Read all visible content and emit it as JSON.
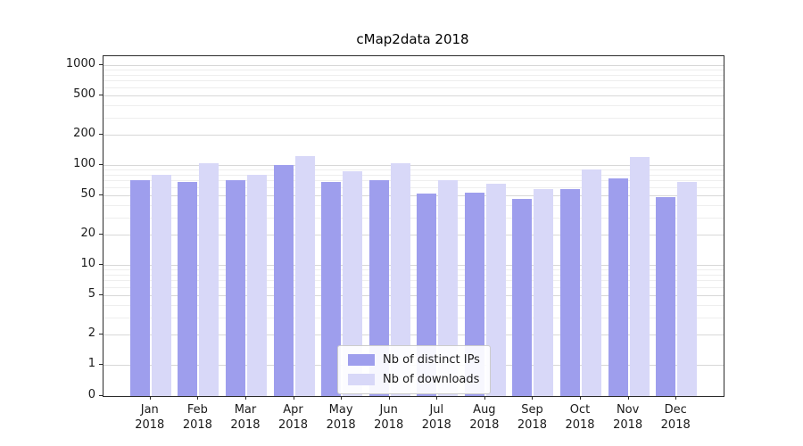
{
  "title": "cMap2data 2018",
  "chart_data": {
    "type": "bar",
    "title": "cMap2data 2018",
    "yscale": "symlog",
    "ylim": [
      0,
      1000
    ],
    "y_ticks": [
      0,
      1,
      2,
      5,
      10,
      20,
      50,
      100,
      200,
      500,
      1000
    ],
    "grid": true,
    "legend_position": "lower center",
    "categories": [
      "Jan",
      "Feb",
      "Mar",
      "Apr",
      "May",
      "Jun",
      "Jul",
      "Aug",
      "Sep",
      "Oct",
      "Nov",
      "Dec"
    ],
    "year": "2018",
    "series": [
      {
        "name": "Nb of distinct IPs",
        "color": "#9e9eed",
        "values": [
          70,
          68,
          70,
          100,
          68,
          71,
          52,
          53,
          46,
          57,
          73,
          48
        ]
      },
      {
        "name": "Nb of downloads",
        "color": "#d8d8f8",
        "values": [
          80,
          105,
          80,
          122,
          86,
          105,
          70,
          65,
          57,
          90,
          120,
          68
        ]
      }
    ]
  }
}
